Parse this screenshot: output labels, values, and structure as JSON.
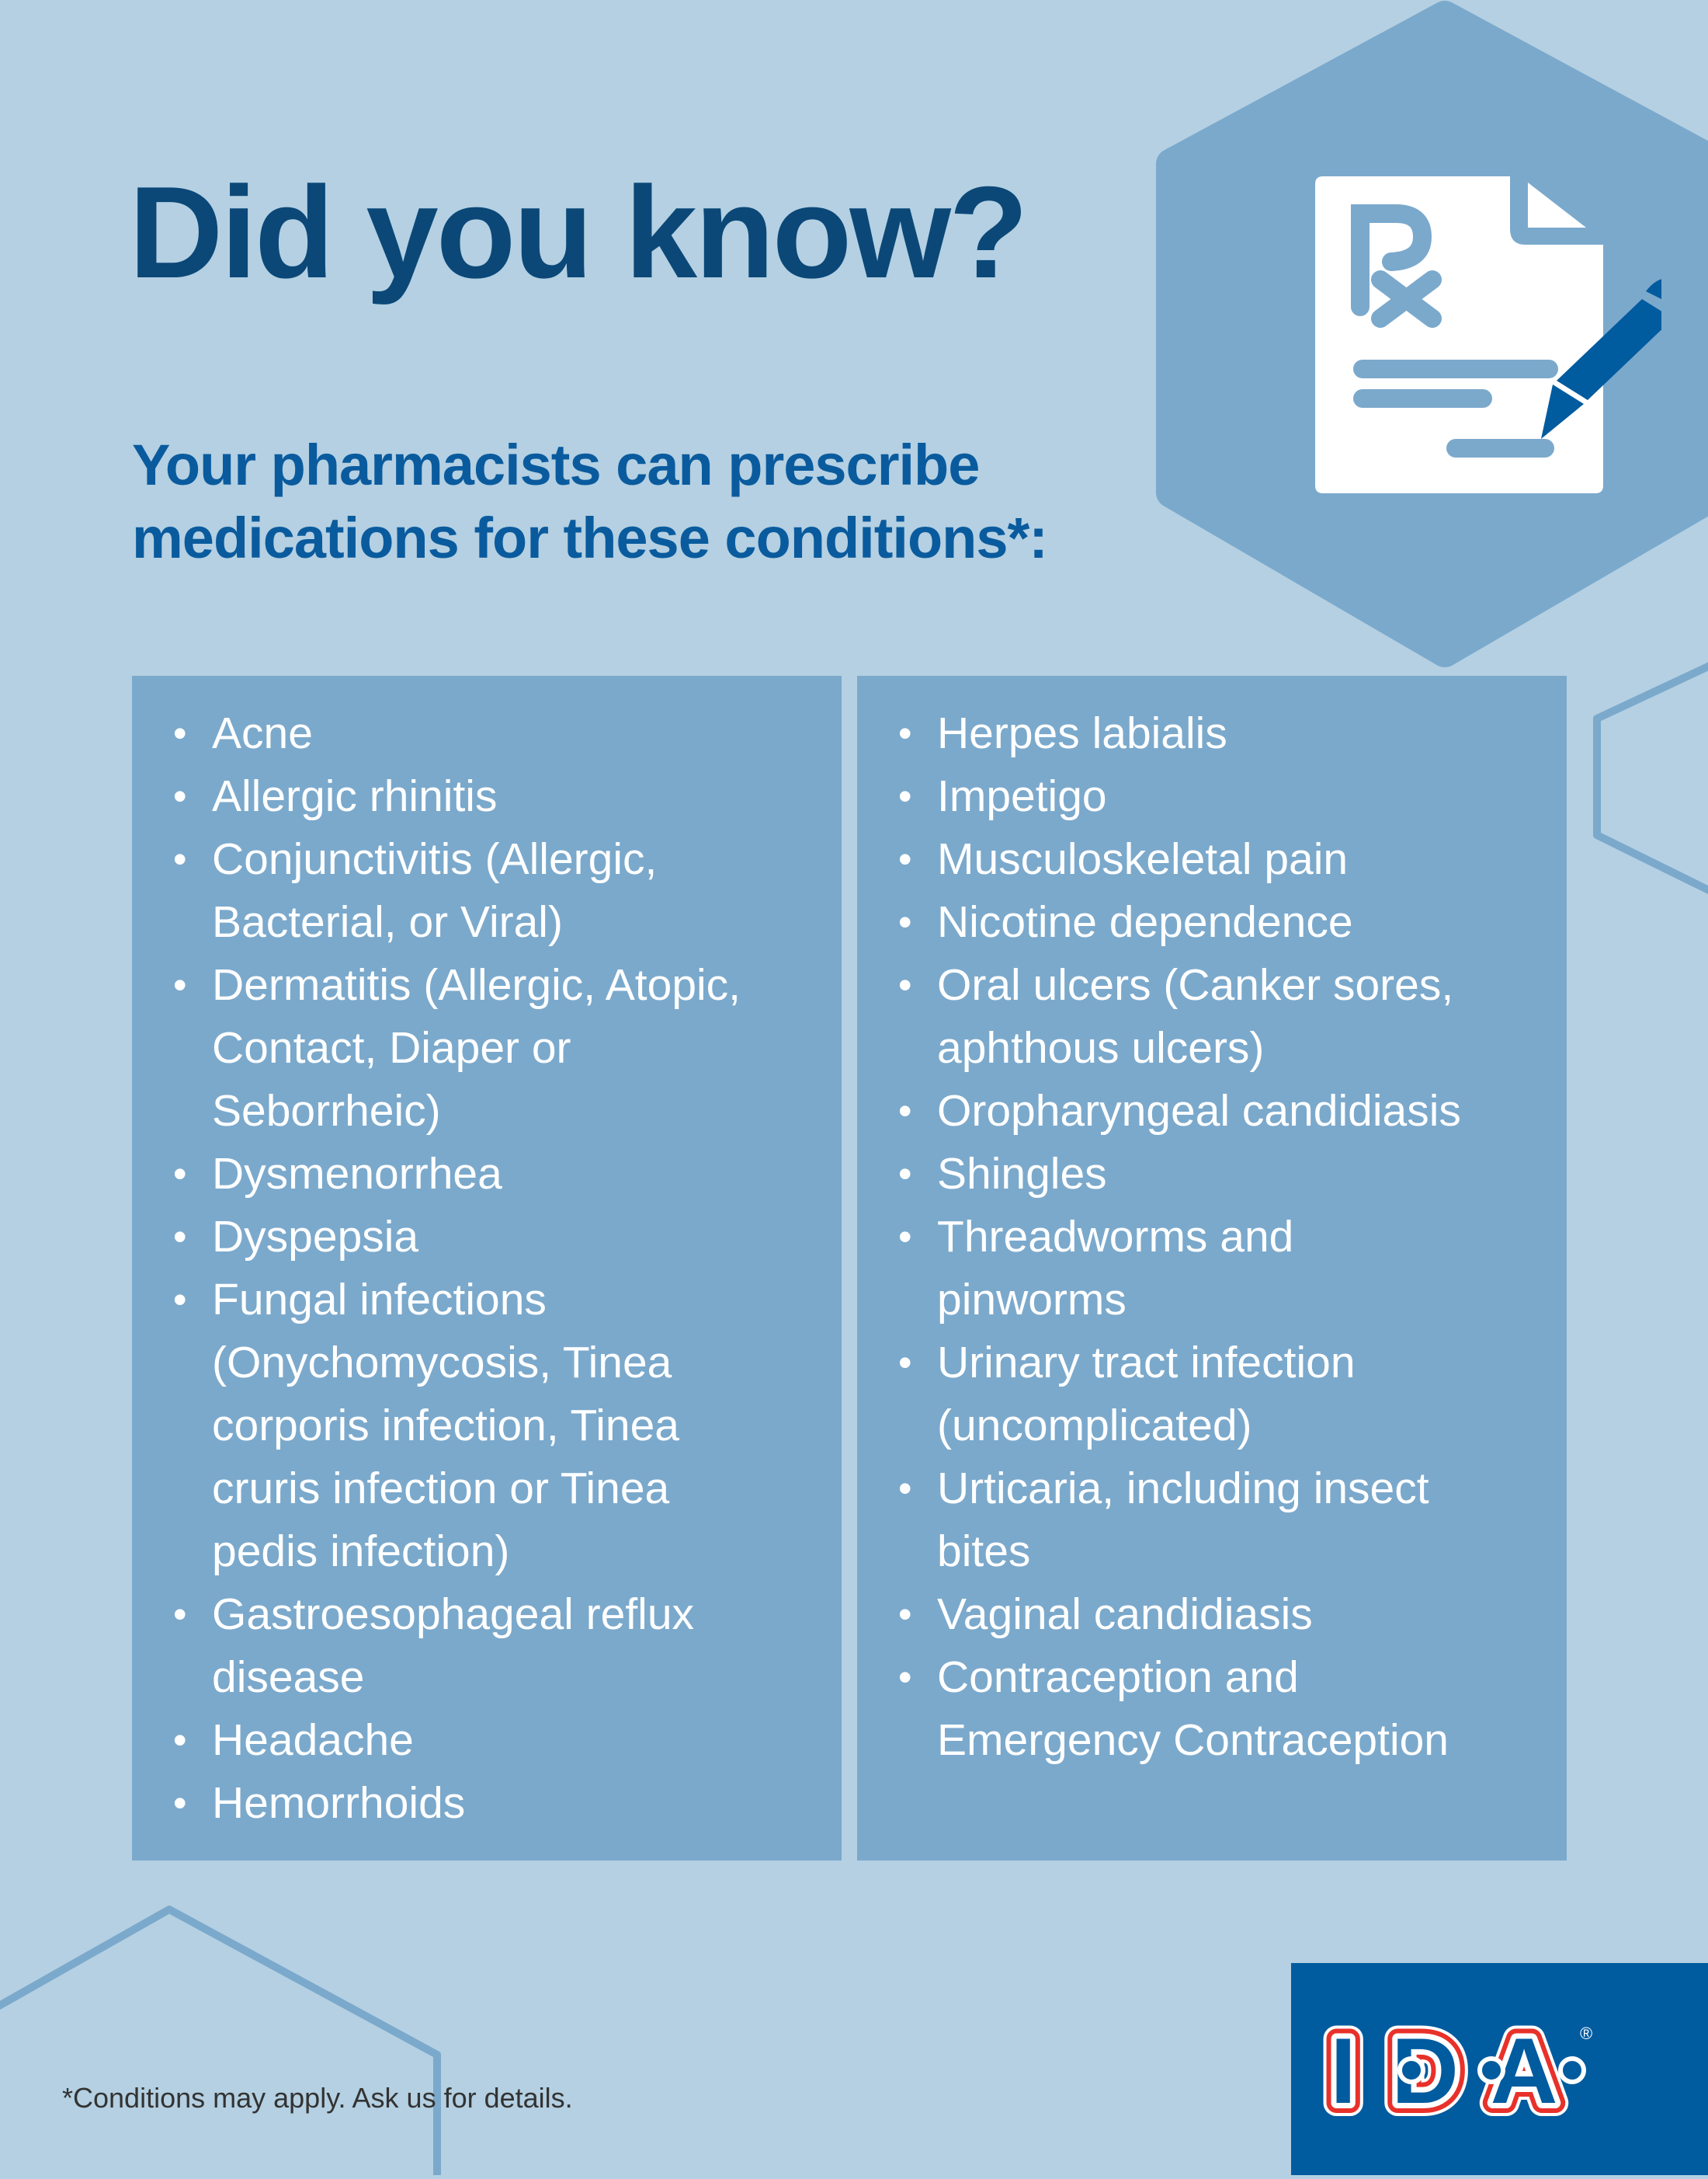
{
  "title": "Did you know?",
  "subtitle": {
    "line1": "Your pharmacists can prescribe",
    "line2": "medications for these conditions*:"
  },
  "conditions_left": [
    [
      "Acne"
    ],
    [
      "Allergic rhinitis"
    ],
    [
      "Conjunctivitis (Allergic,",
      "Bacterial, or Viral)"
    ],
    [
      "Dermatitis (Allergic, Atopic,",
      "Contact, Diaper or",
      "Seborrheic)"
    ],
    [
      "Dysmenorrhea"
    ],
    [
      "Dyspepsia"
    ],
    [
      "Fungal infections",
      "(Onychomycosis, Tinea",
      "corporis infection, Tinea",
      "cruris infection or Tinea",
      "pedis infection)"
    ],
    [
      "Gastroesophageal reflux",
      "disease"
    ],
    [
      "Headache"
    ],
    [
      "Hemorrhoids"
    ]
  ],
  "conditions_right": [
    [
      "Herpes labialis"
    ],
    [
      "Impetigo"
    ],
    [
      "Musculoskeletal pain"
    ],
    [
      "Nicotine dependence"
    ],
    [
      "Oral ulcers (Canker sores,",
      "aphthous ulcers)"
    ],
    [
      "Oropharyngeal candidiasis"
    ],
    [
      "Shingles"
    ],
    [
      "Threadworms and",
      "pinworms"
    ],
    [
      "Urinary tract infection",
      "(uncomplicated)"
    ],
    [
      "Urticaria, including insect",
      "bites"
    ],
    [
      "Vaginal candidiasis"
    ],
    [
      "Contraception and",
      "Emergency Contraception"
    ]
  ],
  "bullet": "•",
  "footnote": "*Conditions may apply. Ask us for details.",
  "logo": {
    "text": "I·D·A",
    "registered": "®"
  },
  "icons": {
    "hero": "prescription-document-pen-icon"
  },
  "colors": {
    "background": "#b4d0e2",
    "panel": "#7ba9cc",
    "title": "#0b4878",
    "subtitle": "#0a5b9e",
    "brand_blue": "#005b9f",
    "brand_red": "#e8312a"
  }
}
